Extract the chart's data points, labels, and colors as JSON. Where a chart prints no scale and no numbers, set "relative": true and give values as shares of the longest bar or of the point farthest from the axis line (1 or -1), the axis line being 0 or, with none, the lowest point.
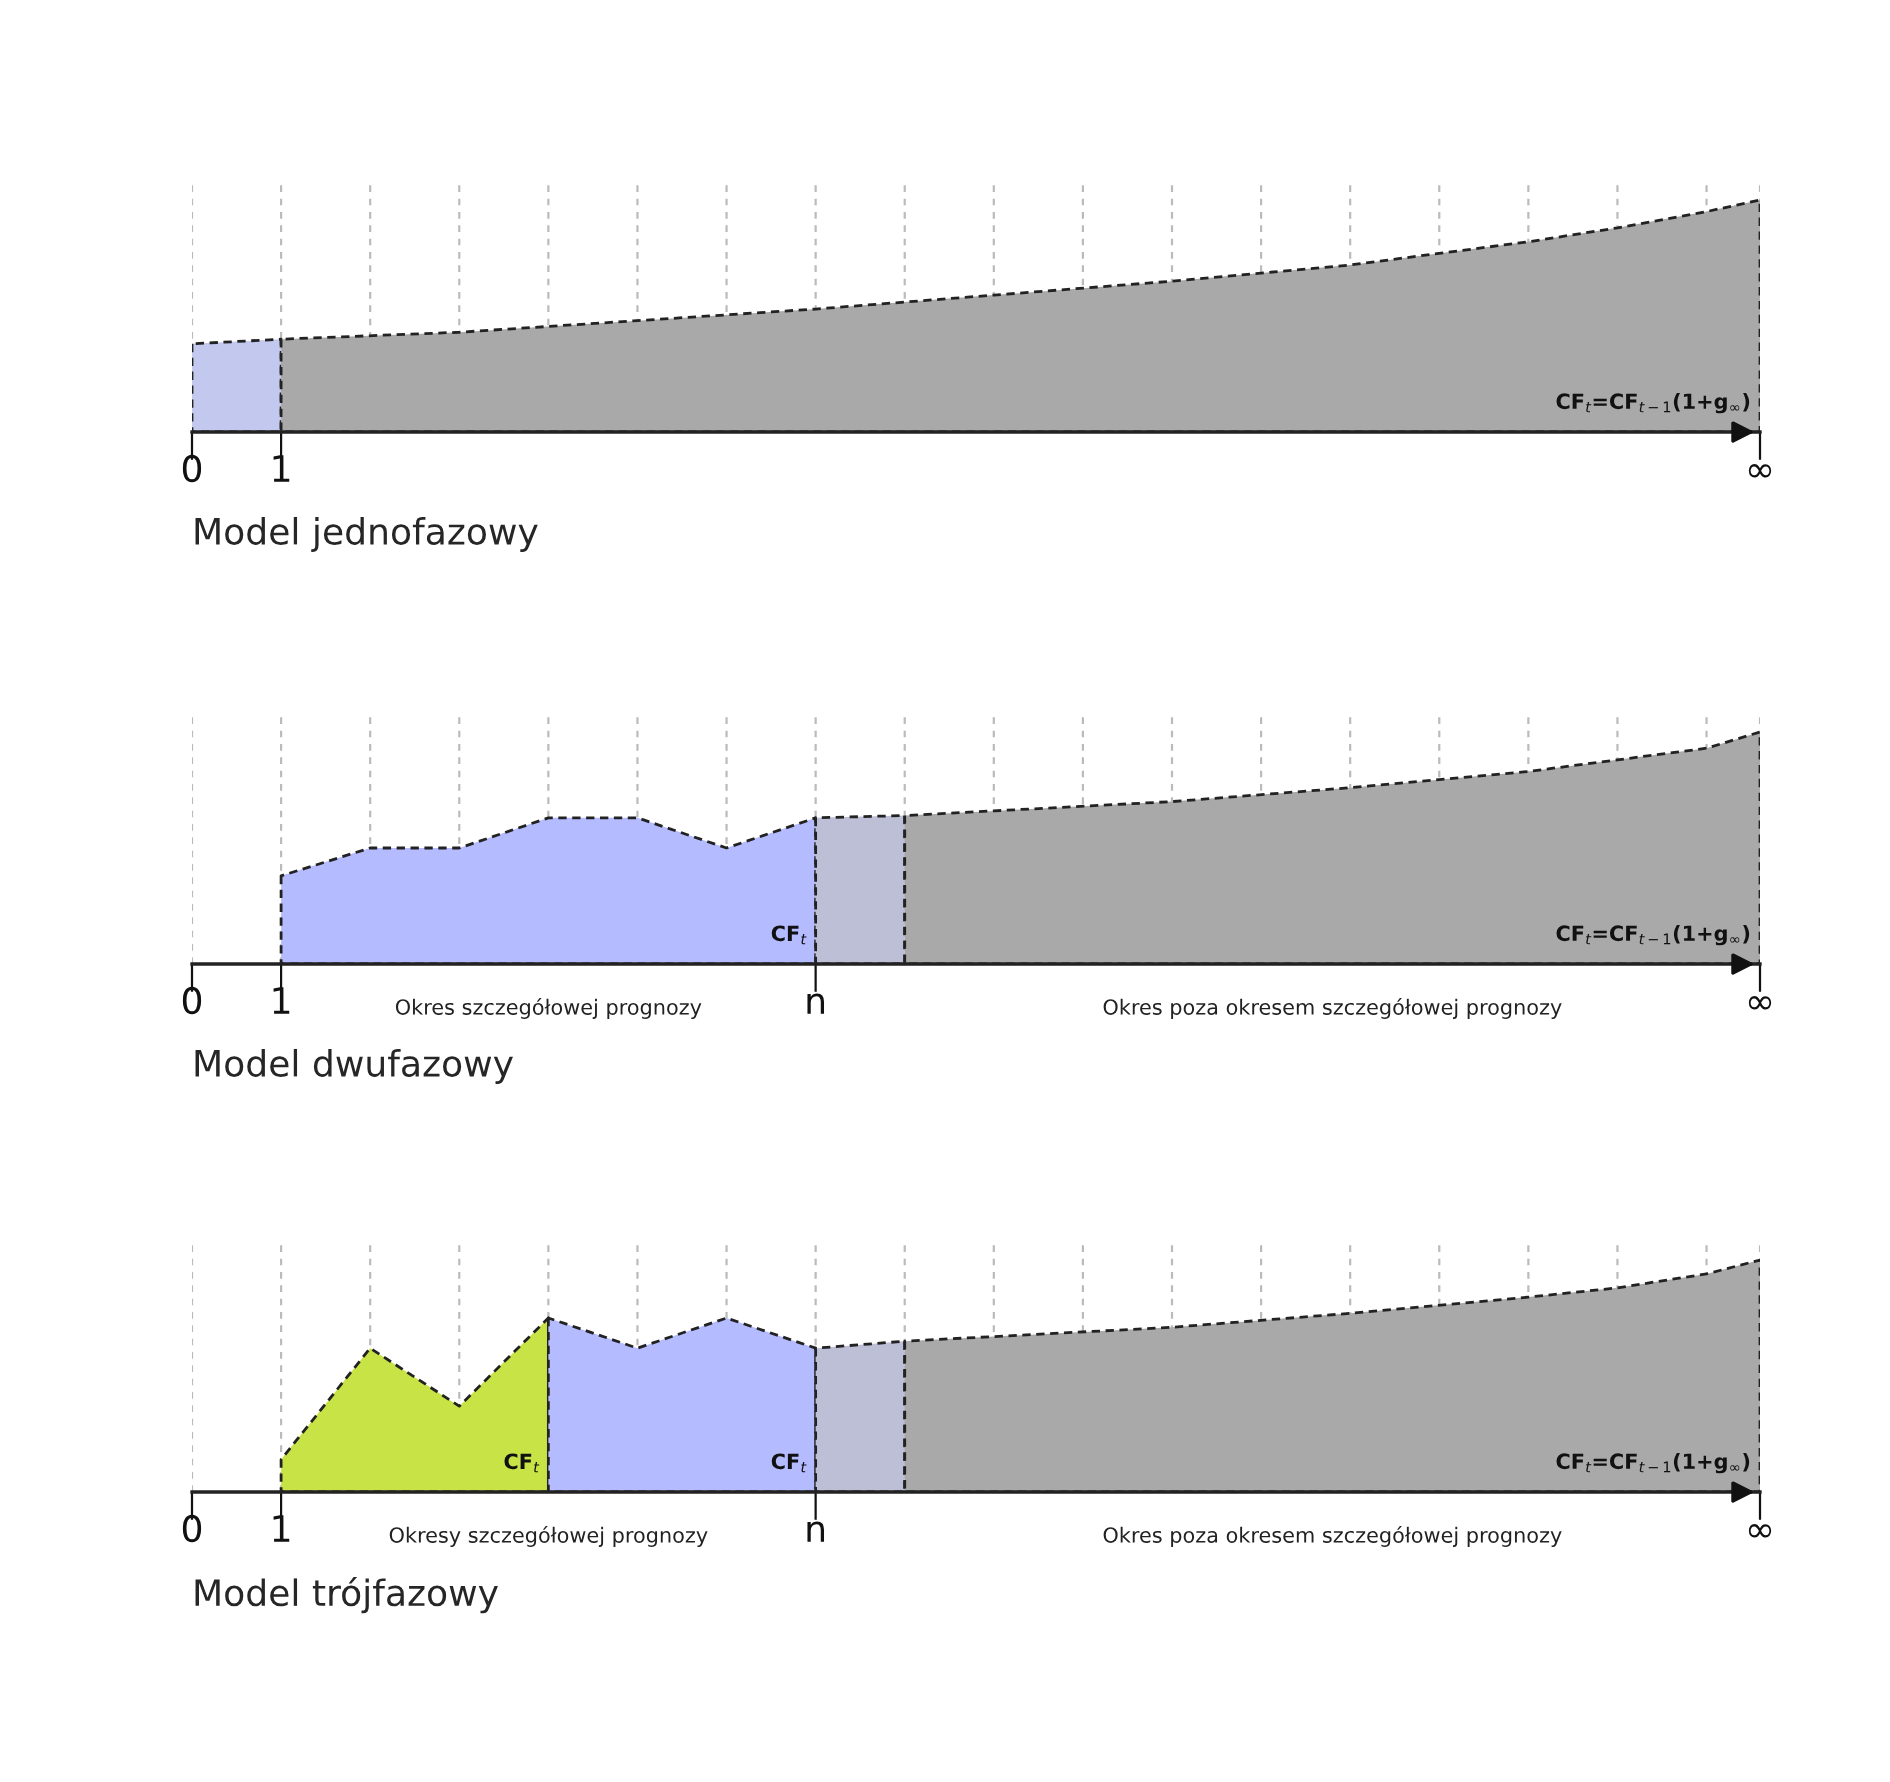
{
  "chart_data": [
    {
      "type": "area",
      "relative": true,
      "xlabel": "Model jednofazowy",
      "grid": "x",
      "line_style": "dashed",
      "xlim": [
        0,
        17.6
      ],
      "xticks": [
        0,
        1,
        {
          "value": 2,
          "label": null
        },
        {
          "value": 3,
          "label": null
        },
        {
          "value": 4,
          "label": null
        },
        {
          "value": 5,
          "label": null
        },
        {
          "value": 6,
          "label": null
        },
        {
          "value": 7,
          "label": null
        },
        {
          "value": 8,
          "label": null
        },
        {
          "value": 9,
          "label": null
        },
        {
          "value": 10,
          "label": null
        },
        {
          "value": 11,
          "label": null
        },
        {
          "value": 12,
          "label": null
        },
        {
          "value": 13,
          "label": null
        },
        {
          "value": 14,
          "label": null
        },
        {
          "value": 15,
          "label": null
        },
        {
          "value": 16,
          "label": null
        },
        {
          "value": 17,
          "label": null
        },
        {
          "value": 17.6,
          "label": "∞"
        }
      ],
      "series": [
        {
          "color": "#c3c8ee",
          "x": [
            0,
            1
          ],
          "values": [
            0.38,
            0.4
          ]
        },
        {
          "color": "#a9a9a9",
          "x": [
            1,
            3,
            5,
            7,
            9,
            11,
            13,
            15,
            16,
            17,
            17.6
          ],
          "values": [
            0.4,
            0.43,
            0.48,
            0.53,
            0.59,
            0.65,
            0.72,
            0.82,
            0.88,
            0.95,
            1
          ]
        }
      ],
      "annotations": [
        {
          "text": "CF$_{t}$=CF$_{t−1}$(1+g$_{∞}$)",
          "x": 17.5,
          "y": 0.08
        }
      ]
    },
    {
      "type": "area",
      "relative": true,
      "xlabel": "Model dwufazowy",
      "grid": "x",
      "line_style": "dashed",
      "xlim": [
        0,
        17.6
      ],
      "xticks": [
        0,
        1,
        {
          "value": 2,
          "label": null
        },
        {
          "value": 3,
          "label": null
        },
        {
          "value": 4,
          "label": null
        },
        {
          "value": 5,
          "label": null
        },
        {
          "value": 6,
          "label": null
        },
        {
          "value": 7,
          "label": "n"
        },
        {
          "value": 8,
          "label": null
        },
        {
          "value": 9,
          "label": null
        },
        {
          "value": 10,
          "label": null
        },
        {
          "value": 11,
          "label": null
        },
        {
          "value": 12,
          "label": null
        },
        {
          "value": 13,
          "label": null
        },
        {
          "value": 14,
          "label": null
        },
        {
          "value": 15,
          "label": null
        },
        {
          "value": 16,
          "label": null
        },
        {
          "value": 17,
          "label": null
        },
        {
          "value": 17.6,
          "label": "∞"
        }
      ],
      "series": [
        {
          "color": "#b4bbff",
          "x": [
            1,
            2,
            3,
            4,
            5,
            6,
            7
          ],
          "values": [
            0.38,
            0.5,
            0.5,
            0.63,
            0.63,
            0.5,
            0.63
          ]
        },
        {
          "color": "#bcbfd6",
          "x": [
            7,
            8
          ],
          "values": [
            0.63,
            0.64
          ]
        },
        {
          "color": "#a9a9a9",
          "x": [
            8,
            9,
            11,
            13,
            15,
            16,
            17,
            17.6
          ],
          "values": [
            0.64,
            0.66,
            0.7,
            0.76,
            0.83,
            0.88,
            0.93,
            1
          ]
        }
      ],
      "annotations": [
        {
          "text": "CF$_{t}$",
          "x": 6.9,
          "y": 0.08
        },
        {
          "text": "CF$_{t}$=CF$_{t−1}$(1+g$_{∞}$)",
          "x": 17.5,
          "y": 0.08
        },
        "Okres szczegółowej prognozy",
        "Okres poza okresem szczegółowej prognozy"
      ]
    },
    {
      "type": "area",
      "relative": true,
      "xlabel": "Model trójfazowy",
      "grid": "x",
      "line_style": "dashed",
      "xlim": [
        0,
        17.6
      ],
      "xticks": [
        0,
        1,
        {
          "value": 2,
          "label": null
        },
        {
          "value": 3,
          "label": null
        },
        {
          "value": 4,
          "label": null
        },
        {
          "value": 5,
          "label": null
        },
        {
          "value": 6,
          "label": null
        },
        {
          "value": 7,
          "label": "n"
        },
        {
          "value": 8,
          "label": null
        },
        {
          "value": 9,
          "label": null
        },
        {
          "value": 10,
          "label": null
        },
        {
          "value": 11,
          "label": null
        },
        {
          "value": 12,
          "label": null
        },
        {
          "value": 13,
          "label": null
        },
        {
          "value": 14,
          "label": null
        },
        {
          "value": 15,
          "label": null
        },
        {
          "value": 16,
          "label": null
        },
        {
          "value": 17,
          "label": null
        },
        {
          "value": 17.6,
          "label": "∞"
        }
      ],
      "series": [
        {
          "color": "#c8e345",
          "x": [
            1,
            2,
            3,
            4
          ],
          "values": [
            0.14,
            0.62,
            0.37,
            0.75
          ]
        },
        {
          "color": "#b4bbff",
          "x": [
            4,
            5,
            6,
            7
          ],
          "values": [
            0.75,
            0.62,
            0.75,
            0.62
          ]
        },
        {
          "color": "#bcbfd6",
          "x": [
            7,
            8
          ],
          "values": [
            0.62,
            0.65
          ]
        },
        {
          "color": "#a9a9a9",
          "x": [
            8,
            9,
            11,
            13,
            15,
            16,
            17,
            17.6
          ],
          "values": [
            0.65,
            0.67,
            0.71,
            0.77,
            0.84,
            0.88,
            0.94,
            1
          ]
        }
      ],
      "annotations": [
        {
          "text": "CF$_{t}$",
          "x": 3.9,
          "y": 0.08
        },
        {
          "text": "CF$_{t}$",
          "x": 6.9,
          "y": 0.08
        },
        {
          "text": "CF$_{t}$=CF$_{t−1}$(1+g$_{∞}$)",
          "x": 17.5,
          "y": 0.08
        },
        "Okresy szczegółowej prognozy",
        "Okres poza okresem szczegółowej prognozy"
      ]
    }
  ]
}
